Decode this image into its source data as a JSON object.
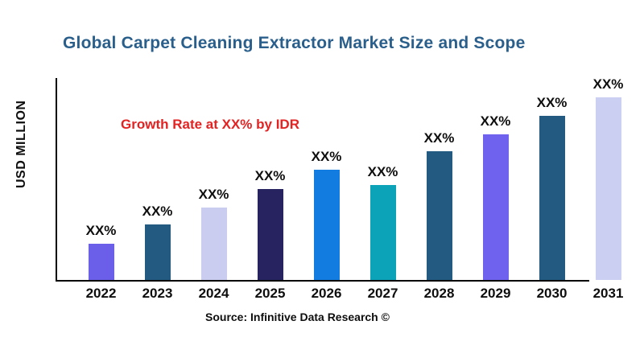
{
  "header": {
    "title": "Global Carpet Cleaning Extractor Market Size and Scope",
    "title_color": "#2A5F8C"
  },
  "annotation": {
    "text": "Growth Rate at XX% by IDR",
    "color": "#E32222"
  },
  "footer": {
    "source": "Source: Infinitive Data Research ©"
  },
  "chart_data": {
    "type": "bar",
    "title": "Global Carpet Cleaning Extractor Market Size and Scope",
    "xlabel": "",
    "ylabel": "USD MILLION",
    "categories": [
      "2022",
      "2023",
      "2024",
      "2025",
      "2026",
      "2027",
      "2028",
      "2029",
      "2030",
      "2031"
    ],
    "values": [
      45,
      69,
      90,
      113,
      137,
      118,
      160,
      181,
      204,
      227
    ],
    "values_unit": "relative-height-px (numeric values not shown in chart; all bars labeled XX%)",
    "bar_labels": [
      "XX%",
      "XX%",
      "XX%",
      "XX%",
      "XX%",
      "XX%",
      "XX%",
      "XX%",
      "XX%",
      "XX%"
    ],
    "bar_colors": [
      "#6B5EE8",
      "#235A82",
      "#CACDF0",
      "#272260",
      "#137CE0",
      "#0CA2B8",
      "#235A82",
      "#6F62EF",
      "#235A82",
      "#CBCFF2"
    ],
    "annotation": "Growth Rate at XX% by IDR",
    "source": "Source: Infinitive Data Research ©",
    "grid": false,
    "legend": "none",
    "y_ticks": "none"
  }
}
